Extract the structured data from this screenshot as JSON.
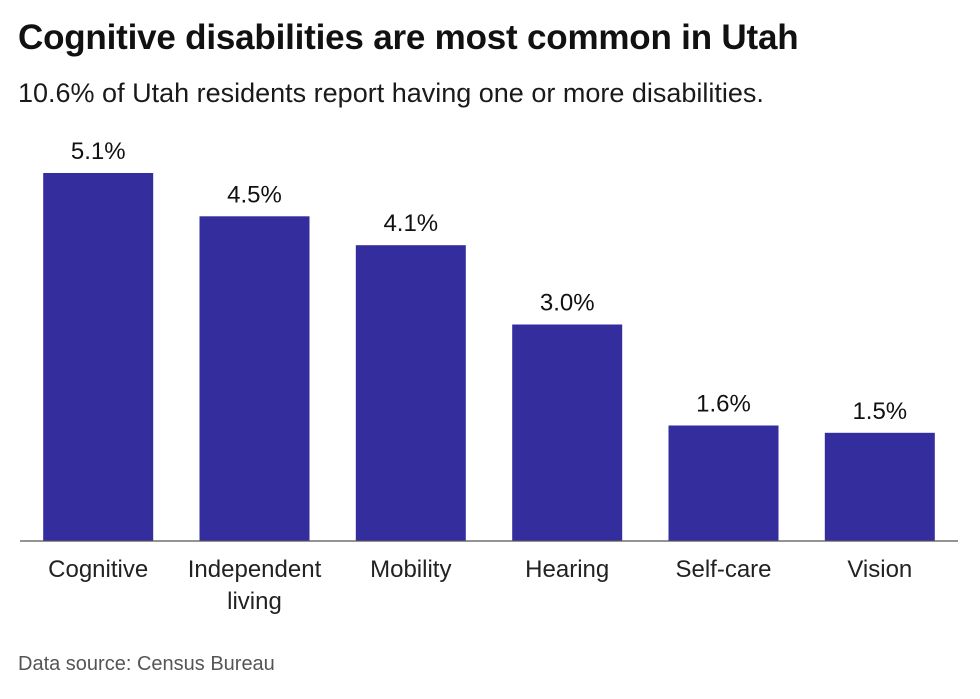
{
  "header": {
    "title": "Cognitive disabilities are most common in Utah",
    "subtitle": "10.6% of Utah residents report having one or more disabilities."
  },
  "footer": {
    "source": "Data source: Census Bureau"
  },
  "colors": {
    "bar": "#332d9e",
    "baseline": "#555555",
    "text": "#111111"
  },
  "chart_data": {
    "type": "bar",
    "categories": [
      [
        "Cognitive"
      ],
      [
        "Independent",
        "living"
      ],
      [
        "Mobility"
      ],
      [
        "Hearing"
      ],
      [
        "Self-care"
      ],
      [
        "Vision"
      ]
    ],
    "values": [
      5.1,
      4.5,
      4.1,
      3.0,
      1.6,
      1.5
    ],
    "value_labels": [
      "5.1%",
      "4.5%",
      "4.1%",
      "3.0%",
      "1.6%",
      "1.5%"
    ],
    "title": "Cognitive disabilities are most common in Utah",
    "subtitle": "10.6% of Utah residents report having one or more disabilities.",
    "xlabel": "",
    "ylabel": "",
    "ylim": [
      0,
      5.1
    ],
    "grid": false,
    "legend": "none"
  }
}
